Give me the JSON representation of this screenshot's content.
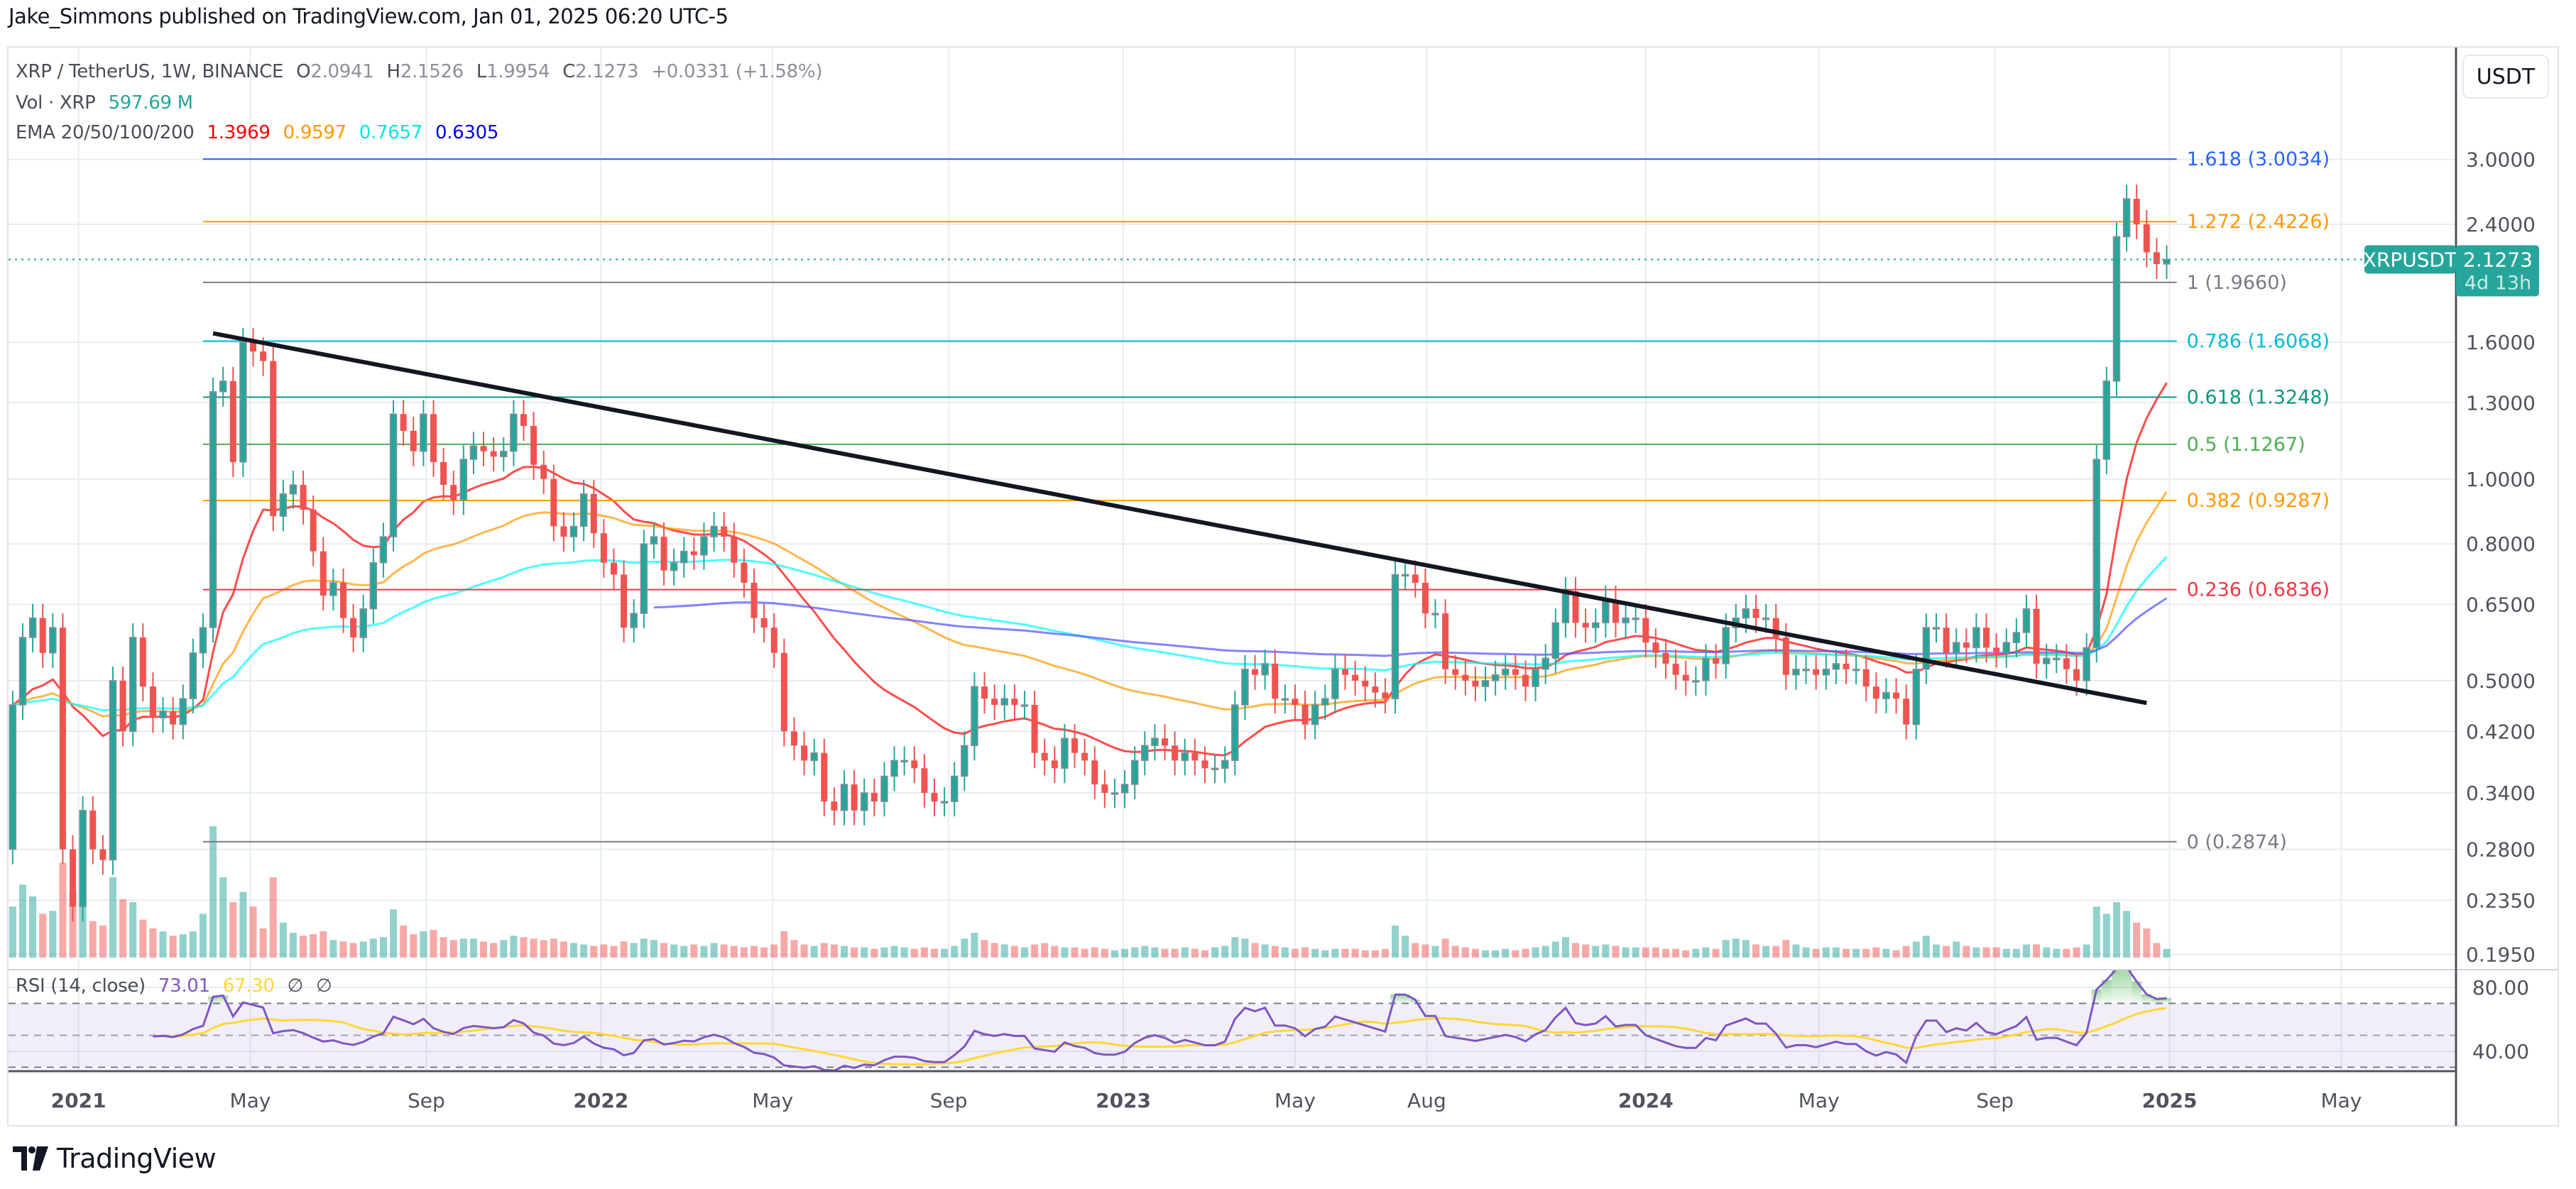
{
  "header": {
    "published": "Jake_Simmons published on TradingView.com, Jan 01, 2025 06:20 UTC-5"
  },
  "legend": {
    "symbol": "XRP / TetherUS, 1W, BINANCE",
    "open_label": "O",
    "open": "2.0941",
    "high_label": "H",
    "high": "2.1526",
    "low_label": "L",
    "low": "1.9954",
    "close_label": "C",
    "close": "2.1273",
    "change": "+0.0331 (+1.58%)",
    "volume_label": "Vol · XRP",
    "volume": "597.69 M",
    "ema_label": "EMA 20/50/100/200",
    "ema_values": [
      "1.3969",
      "0.9597",
      "0.7657",
      "0.6305"
    ]
  },
  "rsi_legend": {
    "label": "RSI (14, close)",
    "rsi": "73.01",
    "rsi_ma": "67.30",
    "extra1": "∅",
    "extra2": "∅"
  },
  "price_axis": {
    "currency_button": "USDT"
  },
  "last_price": {
    "symbol": "XRPUSDT",
    "price": "2.1273",
    "countdown": "4d 13h"
  },
  "branding": {
    "name": "TradingView"
  },
  "colors": {
    "up": "#26a69a",
    "down": "#ef5350",
    "ema20": "#ff0000",
    "ema50": "#ff9800",
    "ema100": "#00ffff",
    "ema200": "#0000ff",
    "rsi": "#7e57c2",
    "rsi_ma": "#fdd835",
    "trendline": "#131722"
  },
  "chart_data": {
    "type": "candlestick",
    "symbol": "XRPUSDT",
    "interval": "1W",
    "y_scale": "log",
    "grid": true,
    "start_week": "2020-11-16",
    "closes": [
      0.46,
      0.58,
      0.62,
      0.55,
      0.6,
      0.28,
      0.23,
      0.32,
      0.28,
      0.27,
      0.5,
      0.42,
      0.58,
      0.49,
      0.44,
      0.45,
      0.43,
      0.47,
      0.55,
      0.6,
      1.35,
      1.4,
      1.06,
      1.6,
      1.55,
      1.5,
      0.88,
      0.95,
      0.98,
      0.9,
      0.78,
      0.67,
      0.7,
      0.62,
      0.58,
      0.64,
      0.75,
      0.82,
      1.25,
      1.18,
      1.1,
      1.25,
      1.06,
      0.98,
      0.93,
      1.07,
      1.12,
      1.1,
      1.08,
      1.1,
      1.25,
      1.2,
      1.05,
      1.0,
      0.85,
      0.82,
      0.85,
      0.95,
      0.83,
      0.75,
      0.72,
      0.6,
      0.63,
      0.8,
      0.82,
      0.73,
      0.75,
      0.78,
      0.77,
      0.82,
      0.85,
      0.82,
      0.75,
      0.7,
      0.62,
      0.6,
      0.55,
      0.42,
      0.4,
      0.38,
      0.39,
      0.33,
      0.32,
      0.35,
      0.32,
      0.34,
      0.33,
      0.36,
      0.38,
      0.38,
      0.37,
      0.34,
      0.33,
      0.33,
      0.36,
      0.4,
      0.49,
      0.47,
      0.46,
      0.47,
      0.46,
      0.46,
      0.39,
      0.38,
      0.37,
      0.41,
      0.39,
      0.38,
      0.35,
      0.34,
      0.34,
      0.35,
      0.38,
      0.4,
      0.41,
      0.4,
      0.38,
      0.39,
      0.38,
      0.37,
      0.37,
      0.38,
      0.46,
      0.52,
      0.51,
      0.53,
      0.47,
      0.47,
      0.46,
      0.43,
      0.46,
      0.47,
      0.52,
      0.51,
      0.5,
      0.49,
      0.48,
      0.47,
      0.72,
      0.72,
      0.7,
      0.63,
      0.63,
      0.52,
      0.51,
      0.5,
      0.49,
      0.5,
      0.51,
      0.52,
      0.51,
      0.49,
      0.52,
      0.54,
      0.61,
      0.68,
      0.61,
      0.6,
      0.61,
      0.66,
      0.61,
      0.62,
      0.62,
      0.57,
      0.55,
      0.53,
      0.51,
      0.5,
      0.5,
      0.54,
      0.53,
      0.6,
      0.62,
      0.64,
      0.62,
      0.62,
      0.58,
      0.51,
      0.52,
      0.52,
      0.51,
      0.52,
      0.53,
      0.52,
      0.52,
      0.49,
      0.47,
      0.48,
      0.47,
      0.43,
      0.52,
      0.6,
      0.6,
      0.55,
      0.57,
      0.56,
      0.6,
      0.56,
      0.55,
      0.57,
      0.59,
      0.64,
      0.53,
      0.54,
      0.54,
      0.52,
      0.5,
      0.56,
      1.07,
      1.4,
      2.3,
      2.62,
      2.4,
      2.18,
      2.0941,
      2.1273
    ],
    "first_open": 0.28,
    "volume_unit": "M XRP",
    "volumes": [
      3500,
      5000,
      4200,
      3000,
      3200,
      6500,
      4500,
      3500,
      2500,
      2200,
      5500,
      4000,
      3800,
      2600,
      2000,
      1800,
      1500,
      1600,
      1800,
      3000,
      9000,
      5500,
      3800,
      4500,
      3500,
      2000,
      5500,
      2400,
      1700,
      1500,
      1600,
      1800,
      1200,
      1100,
      1000,
      1100,
      1300,
      1400,
      3300,
      2200,
      1600,
      1800,
      1900,
      1400,
      1200,
      1300,
      1300,
      1100,
      1000,
      1200,
      1500,
      1400,
      1300,
      1200,
      1300,
      1100,
      1000,
      900,
      800,
      900,
      800,
      1100,
      1000,
      1300,
      1200,
      1000,
      900,
      800,
      900,
      800,
      1000,
      900,
      800,
      700,
      800,
      700,
      900,
      1800,
      1200,
      900,
      800,
      1000,
      900,
      800,
      700,
      700,
      600,
      700,
      800,
      700,
      600,
      700,
      600,
      600,
      800,
      1300,
      1700,
      1200,
      1000,
      900,
      800,
      700,
      900,
      1000,
      800,
      700,
      700,
      600,
      700,
      600,
      500,
      600,
      700,
      800,
      700,
      600,
      600,
      700,
      600,
      500,
      700,
      800,
      1400,
      1300,
      1000,
      900,
      800,
      700,
      600,
      700,
      600,
      500,
      600,
      600,
      600,
      500,
      500,
      600,
      2200,
      1500,
      1000,
      900,
      800,
      1300,
      800,
      700,
      600,
      500,
      500,
      600,
      500,
      600,
      700,
      800,
      1100,
      1400,
      1000,
      900,
      800,
      900,
      800,
      700,
      700,
      700,
      700,
      600,
      600,
      500,
      600,
      700,
      600,
      1200,
      1300,
      1200,
      900,
      800,
      800,
      1200,
      900,
      700,
      600,
      700,
      700,
      600,
      600,
      600,
      700,
      600,
      500,
      800,
      1100,
      1500,
      900,
      800,
      1100,
      800,
      700,
      700,
      700,
      600,
      600,
      900,
      900,
      700,
      600,
      600,
      700,
      900,
      3500,
      3000,
      3800,
      3200,
      2400,
      2000,
      1000,
      597.69
    ],
    "price_ticks": [
      {
        "value": 3.0,
        "label": "3.0000"
      },
      {
        "value": 2.4,
        "label": "2.4000"
      },
      {
        "value": 1.6,
        "label": "1.6000"
      },
      {
        "value": 1.3,
        "label": "1.3000"
      },
      {
        "value": 1.0,
        "label": "1.0000"
      },
      {
        "value": 0.8,
        "label": "0.8000"
      },
      {
        "value": 0.65,
        "label": "0.6500"
      },
      {
        "value": 0.5,
        "label": "0.5000"
      },
      {
        "value": 0.42,
        "label": "0.4200"
      },
      {
        "value": 0.34,
        "label": "0.3400"
      },
      {
        "value": 0.28,
        "label": "0.2800"
      },
      {
        "value": 0.235,
        "label": "0.2350"
      },
      {
        "value": 0.195,
        "label": "0.1950"
      }
    ],
    "rsi_ticks": [
      {
        "value": 80,
        "label": "80.00"
      },
      {
        "value": 40,
        "label": "40.00"
      }
    ],
    "rsi_bands": {
      "upper": 70,
      "middle": 50,
      "lower": 30
    },
    "time_ticks": [
      {
        "label": "2021",
        "date": "2021-01-01",
        "bold": true
      },
      {
        "label": "May",
        "date": "2021-05-01"
      },
      {
        "label": "Sep",
        "date": "2021-09-01"
      },
      {
        "label": "2022",
        "date": "2022-01-01",
        "bold": true
      },
      {
        "label": "May",
        "date": "2022-05-01"
      },
      {
        "label": "Sep",
        "date": "2022-09-01"
      },
      {
        "label": "2023",
        "date": "2023-01-01",
        "bold": true
      },
      {
        "label": "May",
        "date": "2023-05-01"
      },
      {
        "label": "Aug",
        "date": "2023-08-01"
      },
      {
        "label": "2024",
        "date": "2024-01-01",
        "bold": true
      },
      {
        "label": "May",
        "date": "2024-05-01"
      },
      {
        "label": "Sep",
        "date": "2024-09-01"
      },
      {
        "label": "2025",
        "date": "2025-01-01",
        "bold": true
      },
      {
        "label": "May",
        "date": "2025-05-01"
      }
    ],
    "fibonacci": {
      "start_date": "2021-03-29",
      "end_date": "2025-01-06",
      "levels": [
        {
          "ratio": 1.618,
          "price": 3.0034,
          "label": "1.618 (3.0034)",
          "color": "#2962ff"
        },
        {
          "ratio": 1.272,
          "price": 2.4226,
          "label": "1.272 (2.4226)",
          "color": "#ff9800"
        },
        {
          "ratio": 1,
          "price": 1.966,
          "label": "1 (1.9660)",
          "color": "#787b86"
        },
        {
          "ratio": 0.786,
          "price": 1.6068,
          "label": "0.786 (1.6068)",
          "color": "#00bcd4"
        },
        {
          "ratio": 0.618,
          "price": 1.3248,
          "label": "0.618 (1.3248)",
          "color": "#089981"
        },
        {
          "ratio": 0.5,
          "price": 1.1267,
          "label": "0.5 (1.1267)",
          "color": "#4caf50"
        },
        {
          "ratio": 0.382,
          "price": 0.9287,
          "label": "0.382 (0.9287)",
          "color": "#ff9800"
        },
        {
          "ratio": 0.236,
          "price": 0.6836,
          "label": "0.236 (0.6836)",
          "color": "#f23645"
        },
        {
          "ratio": 0,
          "price": 0.2874,
          "label": "0 (0.2874)",
          "color": "#787b86"
        }
      ]
    },
    "trendline": {
      "start": {
        "date": "2021-04-05",
        "price": 1.65
      },
      "end": {
        "date": "2024-12-16",
        "price": 0.463
      }
    },
    "ema_periods": [
      20,
      50,
      100,
      200
    ],
    "ema200_visible_from": "2022-02-07",
    "rsi_period": 14,
    "rsi_ma_period": 14
  }
}
